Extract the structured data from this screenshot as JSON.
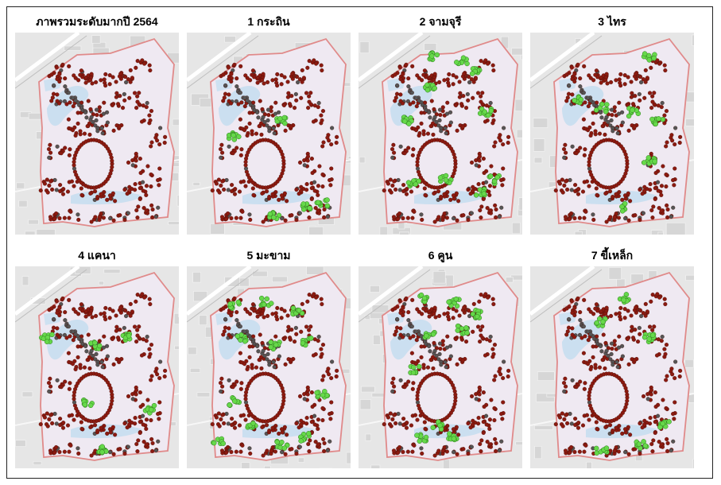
{
  "panels": [
    {
      "title": "ภาพรวมระดับมากปี 2564",
      "highlight": "none"
    },
    {
      "title": "1 กระถิน",
      "highlight": "krathin"
    },
    {
      "title": "2 จามจุรี",
      "highlight": "chamchuri"
    },
    {
      "title": "3 ไทร",
      "highlight": "sai"
    },
    {
      "title": "4 แคนา",
      "highlight": "khana"
    },
    {
      "title": "5 มะขาม",
      "highlight": "makham"
    },
    {
      "title": "6 คูน",
      "highlight": "khun"
    },
    {
      "title": "7 ขี้เหล็ก",
      "highlight": "khilek"
    }
  ],
  "colors": {
    "background_map": "#e6e6e6",
    "campus_fill": "#efe9f2",
    "campus_border": "#e08a8a",
    "water": "#c6def0",
    "road": "#ffffff",
    "tree_point": "#8b1a10",
    "other_point": "#555555",
    "highlight_point": "#66d94a"
  }
}
